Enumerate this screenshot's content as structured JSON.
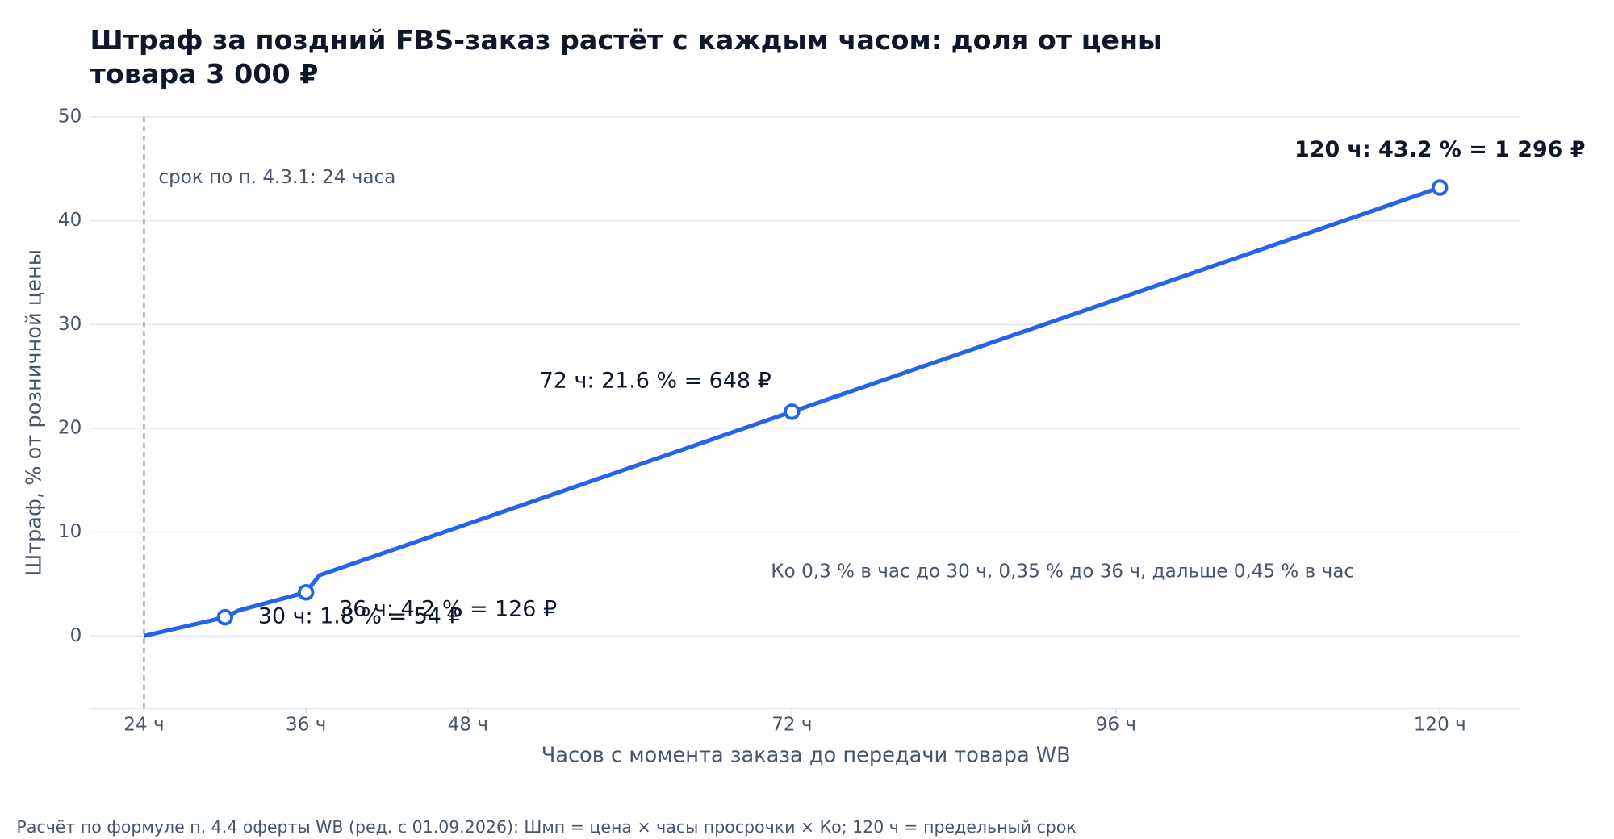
{
  "chart_data": {
    "type": "line",
    "title": "Штраф за поздний FBS-заказ растёт с каждым часом: доля от цены",
    "title_line2": "товара 3 000 ₽",
    "x_label": "Часов с момента заказа до передачи товара WB",
    "y_label": "Штраф, % от розничной цены",
    "series": [
      {
        "color": "#2563eb",
        "x": [
          24,
          30,
          31,
          36,
          37,
          72,
          120
        ],
        "values": [
          0,
          1.8,
          2.45,
          4.2,
          5.85,
          21.6,
          43.2
        ]
      },
      {
        "color": "#2563eb",
        "x": [
          30,
          36,
          72,
          120
        ],
        "values": [
          1.8,
          4.2,
          21.6,
          43.2
        ]
      }
    ],
    "annotations": [
      "30 ч: 1.8 % = 54 ₽",
      "36 ч: 4.2 % = 126 ₽",
      "72 ч: 21.6 % = 648 ₽",
      "120 ч: 43.2 % = 1 296 ₽"
    ],
    "vline": {
      "x": 24,
      "label": "срок по п. 4.3.1: 24 часа"
    },
    "note": "Ко 0,3 % в час до 30 ч, 0,35 % до 36 ч, дальше 0,45 % в час",
    "footer": "Расчёт по формуле п. 4.4 оферты WB (ред. с 01.09.2026): Шмп = цена × часы просрочки × Ко; 120 ч = предельный срок",
    "xlim": [
      20,
      126
    ],
    "xticks": [
      {
        "value": 24,
        "label": "24 ч"
      },
      {
        "value": 36,
        "label": "36 ч"
      },
      {
        "value": 48,
        "label": "48 ч"
      },
      {
        "value": 72,
        "label": "72 ч"
      },
      {
        "value": 96,
        "label": "96 ч"
      },
      {
        "value": 120,
        "label": "120 ч"
      }
    ],
    "ylim": [
      -7,
      50
    ],
    "yticks": [
      0,
      10,
      20,
      30,
      40,
      50
    ],
    "grid": true
  }
}
